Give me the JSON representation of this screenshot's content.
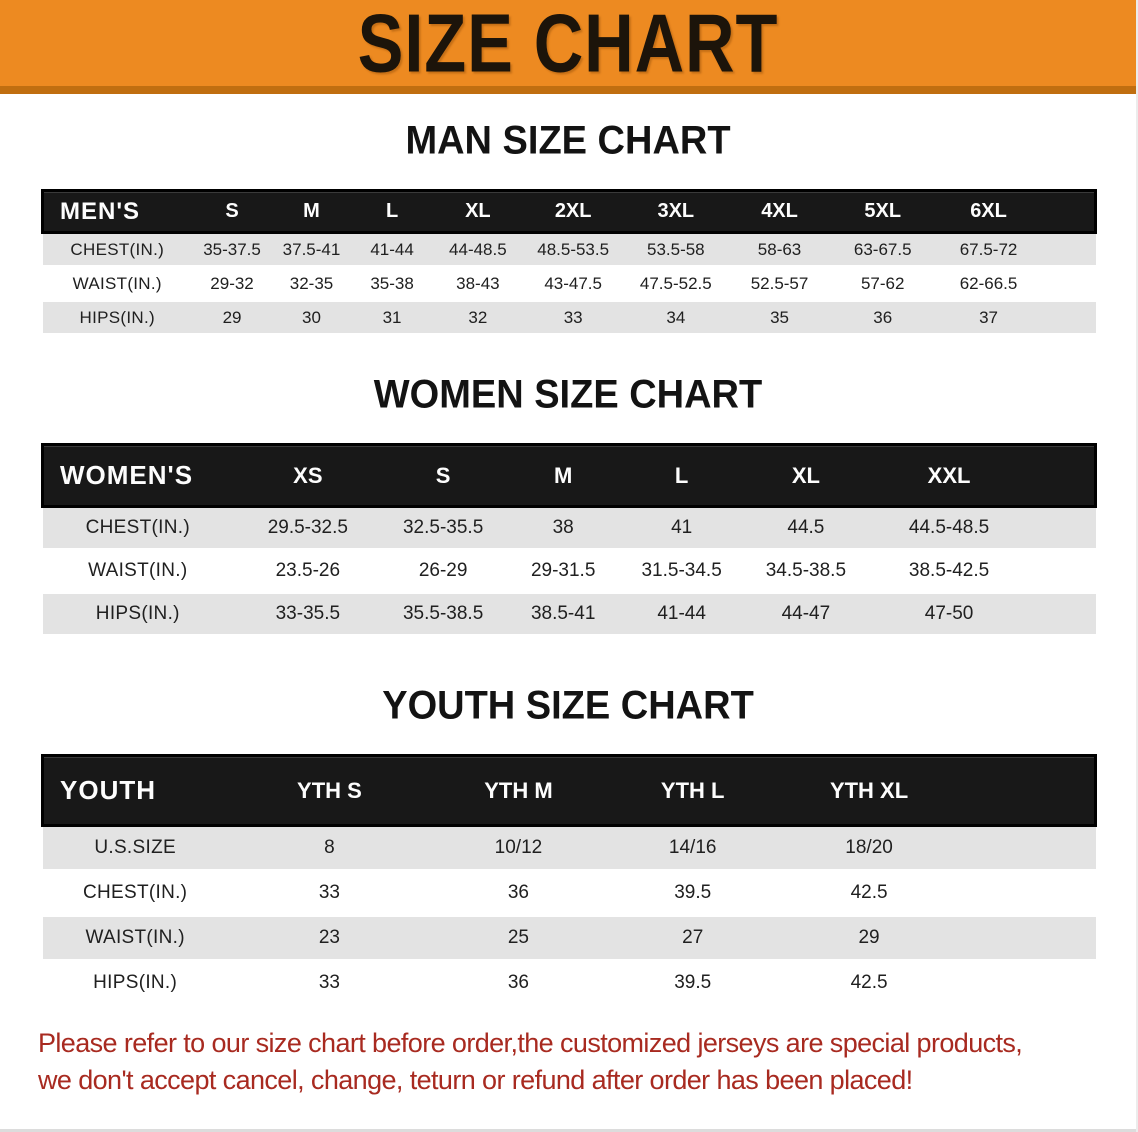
{
  "banner": {
    "title": "SIZE CHART"
  },
  "colors": {
    "banner_orange": "#ED8A21",
    "banner_edge": "#C06E10",
    "header_bar_black": "#181818",
    "row_shade_gray": "#e3e3e3",
    "footer_red": "#A82A20"
  },
  "sections": [
    {
      "title": "MAN SIZE CHART",
      "table": {
        "header_label": "MEN'S",
        "columns": [
          "S",
          "M",
          "L",
          "XL",
          "2XL",
          "3XL",
          "4XL",
          "5XL",
          "6XL"
        ],
        "rows": [
          {
            "label": "CHEST(IN.)",
            "shade": true,
            "values": [
              "35-37.5",
              "37.5-41",
              "41-44",
              "44-48.5",
              "48.5-53.5",
              "53.5-58",
              "58-63",
              "63-67.5",
              "67.5-72"
            ]
          },
          {
            "label": "WAIST(IN.)",
            "shade": false,
            "values": [
              "29-32",
              "32-35",
              "35-38",
              "38-43",
              "43-47.5",
              "47.5-52.5",
              "52.5-57",
              "57-62",
              "62-66.5"
            ]
          },
          {
            "label": "HIPS(IN.)",
            "shade": true,
            "values": [
              "29",
              "30",
              "31",
              "32",
              "33",
              "34",
              "35",
              "36",
              "37"
            ]
          }
        ]
      }
    },
    {
      "title": "WOMEN SIZE CHART",
      "table": {
        "header_label": "WOMEN'S",
        "columns": [
          "XS",
          "S",
          "M",
          "L",
          "XL",
          "XXL"
        ],
        "rows": [
          {
            "label": "CHEST(IN.)",
            "shade": true,
            "values": [
              "29.5-32.5",
              "32.5-35.5",
              "38",
              "41",
              "44.5",
              "44.5-48.5"
            ]
          },
          {
            "label": "WAIST(IN.)",
            "shade": false,
            "values": [
              "23.5-26",
              "26-29",
              "29-31.5",
              "31.5-34.5",
              "34.5-38.5",
              "38.5-42.5"
            ]
          },
          {
            "label": "HIPS(IN.)",
            "shade": true,
            "values": [
              "33-35.5",
              "35.5-38.5",
              "38.5-41",
              "41-44",
              "44-47",
              "47-50"
            ]
          }
        ]
      }
    },
    {
      "title": "YOUTH SIZE CHART",
      "table": {
        "header_label": "YOUTH",
        "columns": [
          "YTH S",
          "YTH M",
          "YTH L",
          "YTH XL"
        ],
        "rows": [
          {
            "label": "U.S.SIZE",
            "shade": true,
            "values": [
              "8",
              "10/12",
              "14/16",
              "18/20"
            ]
          },
          {
            "label": "CHEST(IN.)",
            "shade": false,
            "values": [
              "33",
              "36",
              "39.5",
              "42.5"
            ]
          },
          {
            "label": "WAIST(IN.)",
            "shade": true,
            "values": [
              "23",
              "25",
              "27",
              "29"
            ]
          },
          {
            "label": "HIPS(IN.)",
            "shade": false,
            "values": [
              "33",
              "36",
              "39.5",
              "42.5"
            ]
          }
        ]
      }
    }
  ],
  "footer": {
    "line1": "Please refer to our size chart before order,the customized jerseys are special products,",
    "line2": "we don't accept cancel, change, teturn or refund after order has been placed!"
  }
}
